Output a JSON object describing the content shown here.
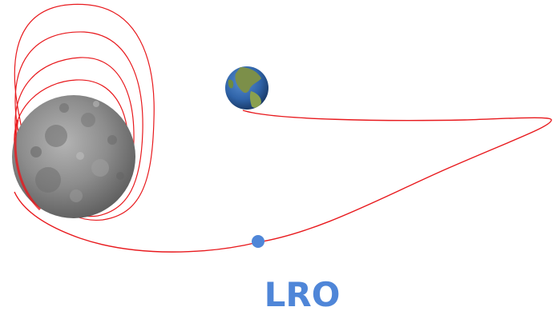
{
  "diagram": {
    "spacecraft_label": "LRO",
    "colors": {
      "trajectory": "#e8191d",
      "spacecraft_marker": "#4f86d8",
      "spacecraft_label": "#4f86d8",
      "moon_surface": "#8a8a8a",
      "earth_ocean": "#2f63a8",
      "earth_land": "#6f8b3f",
      "background": "#ffffff"
    },
    "icons": {
      "moon": "moon-icon",
      "earth": "earth-icon",
      "spacecraft": "spacecraft-dot-icon"
    }
  }
}
